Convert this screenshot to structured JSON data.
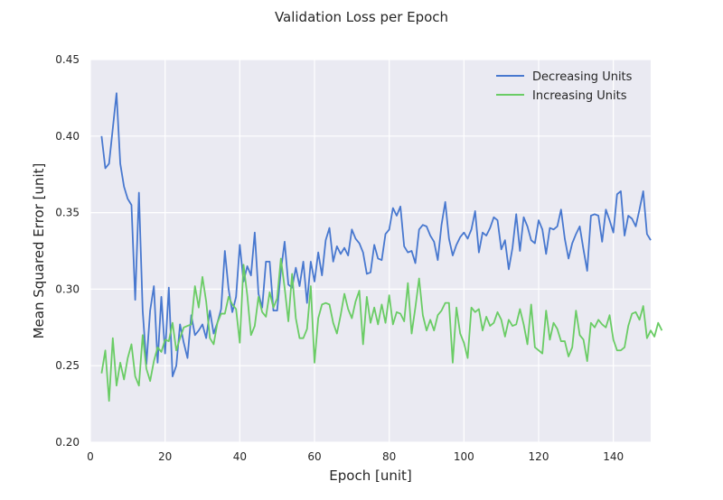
{
  "chart_data": {
    "type": "line",
    "title": "Validation Loss per Epoch",
    "xlabel": "Epoch [unit]",
    "ylabel": "Mean Squared Error [unit]",
    "xlim": [
      0,
      150
    ],
    "ylim": [
      0.2,
      0.45
    ],
    "xticks": [
      0,
      20,
      40,
      60,
      80,
      100,
      120,
      140
    ],
    "yticks": [
      0.2,
      0.25,
      0.3,
      0.35,
      0.4,
      0.45
    ],
    "xtick_labels": [
      "0",
      "20",
      "40",
      "60",
      "80",
      "100",
      "120",
      "140"
    ],
    "ytick_labels": [
      "0.20",
      "0.25",
      "0.30",
      "0.35",
      "0.40",
      "0.45"
    ],
    "grid": true,
    "legend_position": "top-right",
    "x_start": 3,
    "series": [
      {
        "name": "Decreasing Units",
        "color": "#4878cf",
        "values": [
          0.4,
          0.379,
          0.382,
          0.405,
          0.428,
          0.382,
          0.367,
          0.359,
          0.355,
          0.293,
          0.363,
          0.286,
          0.251,
          0.286,
          0.302,
          0.252,
          0.295,
          0.258,
          0.301,
          0.243,
          0.25,
          0.277,
          0.265,
          0.255,
          0.283,
          0.27,
          0.273,
          0.277,
          0.268,
          0.286,
          0.271,
          0.278,
          0.287,
          0.325,
          0.3,
          0.285,
          0.295,
          0.329,
          0.305,
          0.315,
          0.309,
          0.337,
          0.297,
          0.288,
          0.318,
          0.318,
          0.286,
          0.286,
          0.312,
          0.331,
          0.303,
          0.301,
          0.314,
          0.302,
          0.318,
          0.291,
          0.318,
          0.305,
          0.324,
          0.309,
          0.332,
          0.34,
          0.318,
          0.328,
          0.323,
          0.327,
          0.322,
          0.339,
          0.333,
          0.33,
          0.324,
          0.31,
          0.311,
          0.329,
          0.32,
          0.319,
          0.336,
          0.339,
          0.353,
          0.348,
          0.354,
          0.328,
          0.324,
          0.325,
          0.317,
          0.339,
          0.342,
          0.341,
          0.335,
          0.331,
          0.319,
          0.342,
          0.357,
          0.333,
          0.322,
          0.329,
          0.334,
          0.337,
          0.333,
          0.339,
          0.351,
          0.324,
          0.337,
          0.335,
          0.34,
          0.347,
          0.345,
          0.326,
          0.332,
          0.313,
          0.327,
          0.349,
          0.325,
          0.347,
          0.341,
          0.332,
          0.33,
          0.345,
          0.339,
          0.323,
          0.34,
          0.339,
          0.341,
          0.352,
          0.333,
          0.32,
          0.33,
          0.336,
          0.341,
          0.326,
          0.312,
          0.348,
          0.349,
          0.348,
          0.331,
          0.352,
          0.345,
          0.337,
          0.362,
          0.364,
          0.335,
          0.348,
          0.346,
          0.341,
          0.352,
          0.364,
          0.336,
          0.332
        ]
      },
      {
        "name": "Increasing Units",
        "color": "#6acc65",
        "values": [
          0.245,
          0.26,
          0.227,
          0.268,
          0.237,
          0.252,
          0.241,
          0.255,
          0.264,
          0.243,
          0.237,
          0.27,
          0.248,
          0.24,
          0.253,
          0.262,
          0.259,
          0.267,
          0.266,
          0.278,
          0.26,
          0.268,
          0.275,
          0.276,
          0.277,
          0.302,
          0.288,
          0.308,
          0.292,
          0.268,
          0.264,
          0.278,
          0.284,
          0.284,
          0.295,
          0.29,
          0.287,
          0.265,
          0.316,
          0.296,
          0.27,
          0.276,
          0.295,
          0.285,
          0.282,
          0.298,
          0.288,
          0.294,
          0.32,
          0.301,
          0.279,
          0.31,
          0.281,
          0.268,
          0.268,
          0.274,
          0.302,
          0.252,
          0.281,
          0.29,
          0.291,
          0.29,
          0.278,
          0.271,
          0.283,
          0.297,
          0.287,
          0.281,
          0.292,
          0.299,
          0.264,
          0.295,
          0.278,
          0.288,
          0.277,
          0.29,
          0.278,
          0.296,
          0.277,
          0.285,
          0.284,
          0.279,
          0.304,
          0.271,
          0.288,
          0.307,
          0.283,
          0.273,
          0.28,
          0.273,
          0.283,
          0.286,
          0.291,
          0.291,
          0.252,
          0.288,
          0.271,
          0.265,
          0.255,
          0.288,
          0.285,
          0.287,
          0.273,
          0.282,
          0.276,
          0.278,
          0.285,
          0.28,
          0.269,
          0.28,
          0.276,
          0.277,
          0.287,
          0.277,
          0.264,
          0.29,
          0.262,
          0.26,
          0.258,
          0.286,
          0.267,
          0.278,
          0.274,
          0.266,
          0.266,
          0.256,
          0.262,
          0.286,
          0.27,
          0.267,
          0.253,
          0.278,
          0.275,
          0.28,
          0.277,
          0.275,
          0.283,
          0.267,
          0.26,
          0.26,
          0.262,
          0.276,
          0.284,
          0.285,
          0.28,
          0.289,
          0.268,
          0.273,
          0.269,
          0.278,
          0.273
        ]
      }
    ]
  }
}
